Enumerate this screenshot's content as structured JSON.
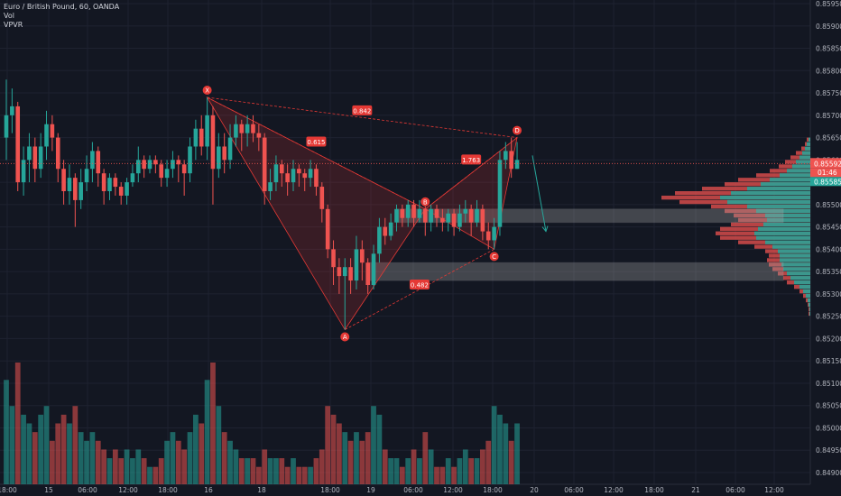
{
  "legend": {
    "symbol": "Euro / British Pound, 60, OANDA",
    "vol": "Vol",
    "vpvr": "VPVR"
  },
  "colors": {
    "background": "#131722",
    "grid": "#1e2230",
    "up": "#26a69a",
    "down": "#ef5350",
    "pattern": "#e53935",
    "zone": "#9e9e9e",
    "arrow": "#26a69a",
    "price_line": "#ef5350",
    "text": "#b2b5be"
  },
  "chart_data": {
    "type": "candlestick",
    "y_axis": {
      "min": 0.8485,
      "max": 0.8597,
      "ticks": [
        "0.85950",
        "0.85900",
        "0.85850",
        "0.85800",
        "0.85750",
        "0.85700",
        "0.85650",
        "0.85600",
        "0.85550",
        "0.85500",
        "0.85450",
        "0.85400",
        "0.85350",
        "0.85300",
        "0.85250",
        "0.85200",
        "0.85150",
        "0.85100",
        "0.85050",
        "0.85000",
        "0.84950",
        "0.84900"
      ]
    },
    "x_axis": {
      "ticks": [
        "18:00",
        "15",
        "06:00",
        "12:00",
        "18:00",
        "16",
        "18",
        "18:00",
        "19",
        "06:00",
        "12:00",
        "18:00",
        "20",
        "06:00",
        "12:00",
        "18:00",
        "21",
        "06:00",
        "12:00"
      ]
    },
    "price_labels": {
      "last": "0.85592",
      "countdown": "01:46",
      "low_marker": "0.85585"
    },
    "harmonic_pattern": {
      "points": [
        {
          "label": "X",
          "t": 35,
          "price": 0.8574
        },
        {
          "label": "A",
          "t": 59,
          "price": 0.8522
        },
        {
          "label": "B",
          "t": 73,
          "price": 0.8549
        },
        {
          "label": "C",
          "t": 85,
          "price": 0.854
        },
        {
          "label": "D",
          "t": 89,
          "price": 0.8565
        }
      ],
      "ratios": [
        {
          "label": "0.842",
          "t": 62,
          "price": 0.8571
        },
        {
          "label": "0.615",
          "t": 54,
          "price": 0.8564
        },
        {
          "label": "1.763",
          "t": 81,
          "price": 0.856
        },
        {
          "label": "0.482",
          "t": 72,
          "price": 0.8532
        }
      ]
    },
    "zones": [
      {
        "t_start": 68,
        "price_low": 0.8546,
        "price_high": 0.8549
      },
      {
        "t_start": 63,
        "price_low": 0.8533,
        "price_high": 0.8537
      }
    ],
    "volume_profile": {
      "price_start": 0.8525,
      "price_step": 0.0001,
      "total": [
        2,
        2,
        3,
        5,
        8,
        12,
        18,
        26,
        30,
        36,
        42,
        46,
        48,
        46,
        50,
        62,
        80,
        100,
        105,
        100,
        88,
        80,
        85,
        95,
        110,
        145,
        165,
        150,
        120,
        95,
        80,
        60,
        45,
        35,
        28,
        22,
        16,
        10,
        6,
        4
      ],
      "up": [
        1,
        1,
        2,
        3,
        5,
        8,
        12,
        18,
        22,
        26,
        30,
        32,
        34,
        34,
        36,
        42,
        50,
        60,
        62,
        58,
        52,
        48,
        50,
        60,
        70,
        92,
        100,
        88,
        70,
        55,
        45,
        34,
        26,
        20,
        16,
        12,
        9,
        6,
        4,
        2
      ]
    },
    "candles": [
      [
        0.8565,
        0.857,
        0.8578,
        0.856,
        12
      ],
      [
        0.857,
        0.8572,
        0.8576,
        0.8566,
        9
      ],
      [
        0.8572,
        0.8555,
        0.8573,
        0.8553,
        14
      ],
      [
        0.8555,
        0.856,
        0.8563,
        0.8552,
        8
      ],
      [
        0.856,
        0.8563,
        0.8566,
        0.8555,
        7
      ],
      [
        0.8563,
        0.8558,
        0.8565,
        0.8555,
        6
      ],
      [
        0.8558,
        0.8563,
        0.8566,
        0.8556,
        8
      ],
      [
        0.8563,
        0.8568,
        0.8571,
        0.856,
        9
      ],
      [
        0.8568,
        0.8565,
        0.857,
        0.8562,
        5
      ],
      [
        0.8565,
        0.8558,
        0.8566,
        0.8555,
        7
      ],
      [
        0.8558,
        0.8553,
        0.856,
        0.855,
        8
      ],
      [
        0.8553,
        0.8556,
        0.8559,
        0.855,
        7
      ],
      [
        0.8556,
        0.8551,
        0.8557,
        0.8545,
        9
      ],
      [
        0.8551,
        0.8555,
        0.8558,
        0.8549,
        6
      ],
      [
        0.8555,
        0.8558,
        0.8561,
        0.8553,
        5
      ],
      [
        0.8558,
        0.8562,
        0.8564,
        0.8555,
        6
      ],
      [
        0.8562,
        0.8557,
        0.8563,
        0.8554,
        5
      ],
      [
        0.8557,
        0.8553,
        0.8558,
        0.855,
        4
      ],
      [
        0.8553,
        0.8556,
        0.8557,
        0.8551,
        3
      ],
      [
        0.8556,
        0.8554,
        0.8557,
        0.8552,
        4
      ],
      [
        0.8554,
        0.8552,
        0.8555,
        0.855,
        3
      ],
      [
        0.8552,
        0.8555,
        0.8556,
        0.855,
        4
      ],
      [
        0.8555,
        0.8557,
        0.8559,
        0.8554,
        3
      ],
      [
        0.8557,
        0.856,
        0.8563,
        0.8555,
        4
      ],
      [
        0.856,
        0.8558,
        0.8561,
        0.8556,
        3
      ],
      [
        0.8558,
        0.856,
        0.8561,
        0.8557,
        2
      ],
      [
        0.856,
        0.8559,
        0.8561,
        0.8557,
        2
      ],
      [
        0.8559,
        0.8556,
        0.856,
        0.8554,
        3
      ],
      [
        0.8556,
        0.8558,
        0.856,
        0.8554,
        5
      ],
      [
        0.8558,
        0.856,
        0.8562,
        0.8556,
        6
      ],
      [
        0.856,
        0.8559,
        0.8561,
        0.8555,
        5
      ],
      [
        0.8559,
        0.8557,
        0.856,
        0.8552,
        4
      ],
      [
        0.8557,
        0.8563,
        0.8565,
        0.8555,
        6
      ],
      [
        0.8563,
        0.8567,
        0.8569,
        0.856,
        8
      ],
      [
        0.8567,
        0.8563,
        0.857,
        0.8561,
        7
      ],
      [
        0.8563,
        0.857,
        0.8574,
        0.856,
        12
      ],
      [
        0.857,
        0.8558,
        0.8572,
        0.855,
        14
      ],
      [
        0.8558,
        0.8563,
        0.8566,
        0.8556,
        9
      ],
      [
        0.8563,
        0.856,
        0.8566,
        0.8557,
        6
      ],
      [
        0.856,
        0.8565,
        0.8568,
        0.8558,
        5
      ],
      [
        0.8565,
        0.8568,
        0.857,
        0.8563,
        4
      ],
      [
        0.8568,
        0.8566,
        0.8569,
        0.8562,
        3
      ],
      [
        0.8566,
        0.8568,
        0.857,
        0.8563,
        3
      ],
      [
        0.8568,
        0.8566,
        0.857,
        0.8564,
        3
      ],
      [
        0.8566,
        0.8565,
        0.8568,
        0.8562,
        2
      ],
      [
        0.8565,
        0.8553,
        0.8566,
        0.855,
        4
      ],
      [
        0.8553,
        0.8555,
        0.8558,
        0.8551,
        3
      ],
      [
        0.8555,
        0.8559,
        0.8561,
        0.8553,
        3
      ],
      [
        0.8559,
        0.8557,
        0.856,
        0.8554,
        3
      ],
      [
        0.8557,
        0.8555,
        0.8559,
        0.8552,
        2
      ],
      [
        0.8555,
        0.8558,
        0.856,
        0.8553,
        3
      ],
      [
        0.8558,
        0.8557,
        0.8559,
        0.8554,
        2
      ],
      [
        0.8557,
        0.8556,
        0.8558,
        0.8553,
        2
      ],
      [
        0.8556,
        0.8558,
        0.856,
        0.8554,
        2
      ],
      [
        0.8558,
        0.8554,
        0.8559,
        0.8552,
        3
      ],
      [
        0.8554,
        0.8549,
        0.8555,
        0.8546,
        4
      ],
      [
        0.8549,
        0.854,
        0.855,
        0.8538,
        9
      ],
      [
        0.854,
        0.8536,
        0.8542,
        0.8532,
        8
      ],
      [
        0.8536,
        0.8534,
        0.8538,
        0.853,
        7
      ],
      [
        0.8534,
        0.8536,
        0.8538,
        0.8522,
        6
      ],
      [
        0.8536,
        0.8533,
        0.8538,
        0.853,
        5
      ],
      [
        0.8533,
        0.854,
        0.8543,
        0.8531,
        6
      ],
      [
        0.854,
        0.8537,
        0.8542,
        0.8533,
        5
      ],
      [
        0.8537,
        0.8532,
        0.8538,
        0.853,
        6
      ],
      [
        0.8532,
        0.8539,
        0.8541,
        0.8531,
        9
      ],
      [
        0.8539,
        0.8545,
        0.8547,
        0.8537,
        8
      ],
      [
        0.8545,
        0.8543,
        0.8547,
        0.8541,
        4
      ],
      [
        0.8543,
        0.8546,
        0.8548,
        0.8542,
        3
      ],
      [
        0.8546,
        0.8549,
        0.855,
        0.8544,
        3
      ],
      [
        0.8549,
        0.8547,
        0.855,
        0.8545,
        2
      ],
      [
        0.8547,
        0.855,
        0.8551,
        0.8545,
        3
      ],
      [
        0.855,
        0.8547,
        0.8551,
        0.8545,
        4
      ],
      [
        0.8547,
        0.8549,
        0.8551,
        0.8546,
        3
      ],
      [
        0.8549,
        0.8546,
        0.8551,
        0.8543,
        6
      ],
      [
        0.8546,
        0.8549,
        0.855,
        0.8544,
        4
      ],
      [
        0.8549,
        0.8547,
        0.855,
        0.8545,
        2
      ],
      [
        0.8547,
        0.8546,
        0.8549,
        0.8544,
        2
      ],
      [
        0.8546,
        0.8548,
        0.8549,
        0.8544,
        3
      ],
      [
        0.8548,
        0.8545,
        0.8549,
        0.8543,
        2
      ],
      [
        0.8545,
        0.8548,
        0.855,
        0.8544,
        3
      ],
      [
        0.8548,
        0.8549,
        0.8551,
        0.8546,
        4
      ],
      [
        0.8549,
        0.8546,
        0.855,
        0.8543,
        3
      ],
      [
        0.8546,
        0.8549,
        0.8551,
        0.8545,
        3
      ],
      [
        0.8549,
        0.8544,
        0.855,
        0.8542,
        4
      ],
      [
        0.8544,
        0.8542,
        0.8546,
        0.854,
        5
      ],
      [
        0.8542,
        0.8545,
        0.8547,
        0.854,
        9
      ],
      [
        0.8545,
        0.856,
        0.8562,
        0.8543,
        8
      ],
      [
        0.856,
        0.8562,
        0.8564,
        0.8558,
        7
      ],
      [
        0.8562,
        0.8558,
        0.8565,
        0.8556,
        5
      ],
      [
        0.8558,
        0.856,
        0.8564,
        0.8558,
        7
      ]
    ]
  }
}
